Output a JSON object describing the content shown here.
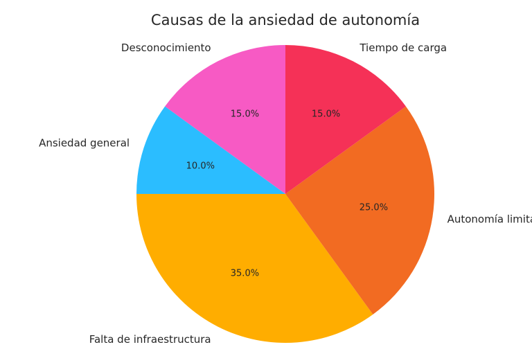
{
  "chart_data": {
    "type": "pie",
    "title": "Causas de la ansiedad de autonomía",
    "start_angle_deg": 90,
    "direction": "counterclockwise",
    "slices": [
      {
        "label": "Desconocimiento",
        "value": 15.0,
        "pct_text": "15.0%",
        "color": "#F75AC4"
      },
      {
        "label": "Ansiedad general",
        "value": 10.0,
        "pct_text": "10.0%",
        "color": "#2BBDFF"
      },
      {
        "label": "Falta de infraestructura",
        "value": 35.0,
        "pct_text": "35.0%",
        "color": "#FFAD00"
      },
      {
        "label": "Autonomía limitada",
        "value": 25.0,
        "pct_text": "25.0%",
        "color": "#F26B22"
      },
      {
        "label": "Tiempo de carga",
        "value": 15.0,
        "pct_text": "15.0%",
        "color": "#F53157"
      }
    ]
  }
}
